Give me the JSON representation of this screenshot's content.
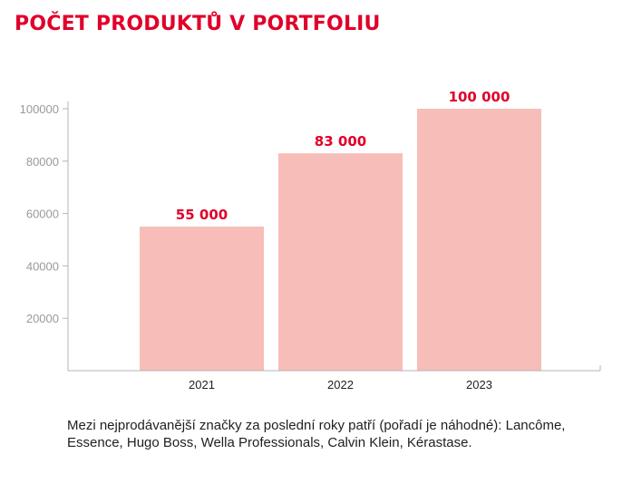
{
  "title": "POČET PRODUKTŮ V PORTFOLIU",
  "caption": "Mezi nejprodávanější značky za poslední roky patří (pořadí je náhodné): Lancôme, Essence, Hugo Boss, Wella Professionals, Calvin Klein, Kérastase.",
  "colors": {
    "accent": "#e0002a",
    "bar": "#f7bdb8",
    "axis": "#b5b5b5",
    "tick_label": "#9a9a9a",
    "category_label": "#222222"
  },
  "chart_data": {
    "type": "bar",
    "categories": [
      "2021",
      "2022",
      "2023"
    ],
    "values": [
      55000,
      83000,
      100000
    ],
    "value_labels": [
      "55 000",
      "83 000",
      "100 000"
    ],
    "yticks": [
      20000,
      40000,
      60000,
      80000,
      100000
    ],
    "ytick_labels": [
      "20000",
      "40000",
      "60000",
      "80000",
      "100000"
    ],
    "ylim": [
      0,
      100000
    ],
    "grid": false
  }
}
